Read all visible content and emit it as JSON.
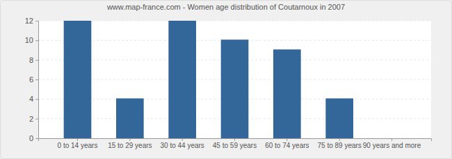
{
  "chart_data": {
    "type": "bar",
    "title": "www.map-france.com - Women age distribution of Coutarnoux in 2007",
    "categories": [
      "0 to 14 years",
      "15 to 29 years",
      "30 to 44 years",
      "45 to 59 years",
      "60 to 74 years",
      "75 to 89 years",
      "90 years and more"
    ],
    "values": [
      12,
      4,
      12,
      10,
      9,
      4,
      0
    ],
    "color": "#336699",
    "ylim": [
      0,
      12
    ],
    "yticks": [
      0,
      2,
      4,
      6,
      8,
      10,
      12
    ],
    "grid": true
  }
}
